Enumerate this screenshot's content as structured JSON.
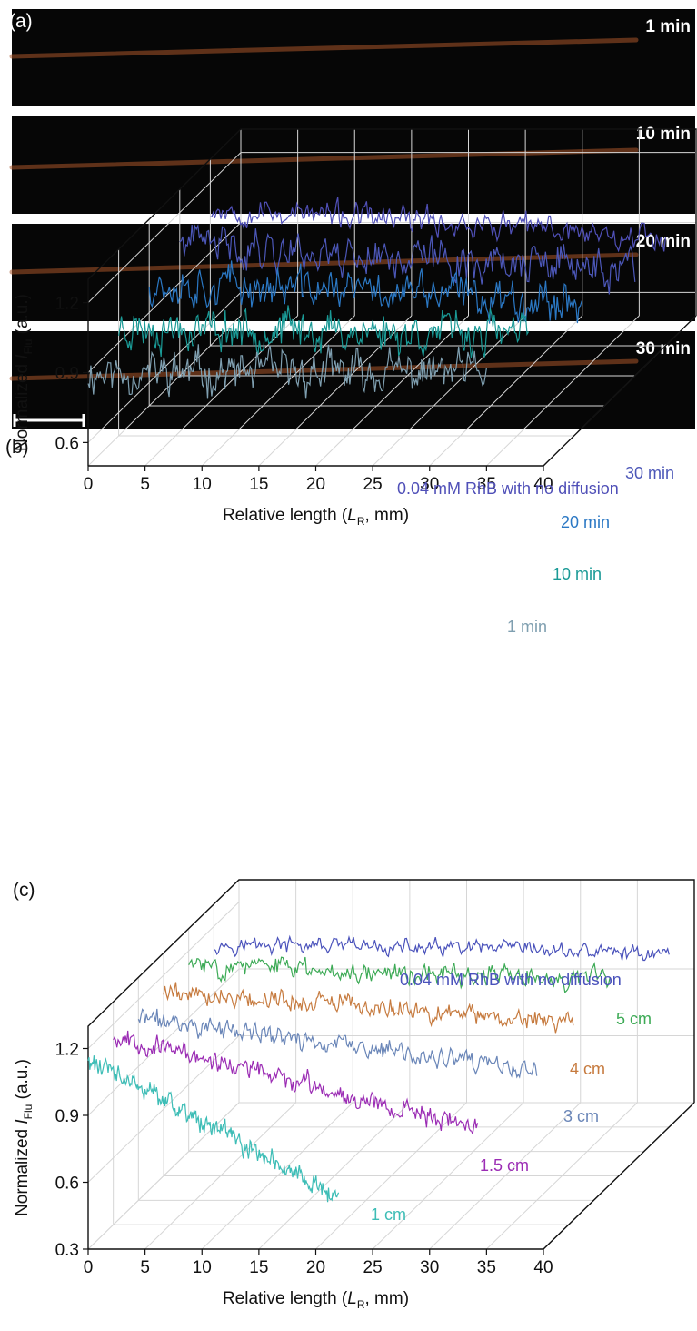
{
  "panels": {
    "a": {
      "label": "(a)",
      "strips": [
        {
          "time_label": "1 min"
        },
        {
          "time_label": "10 min"
        },
        {
          "time_label": "20 min"
        },
        {
          "time_label": "30 min"
        }
      ],
      "colors": {
        "background": "#060606",
        "streak": "#a8552a",
        "scale_bar": "#ffffff"
      }
    },
    "b": {
      "label": "(b)"
    },
    "c": {
      "label": "(c)"
    }
  },
  "chart_data": [
    {
      "type": "line",
      "panel": "b",
      "projection": "3d-waterfall",
      "xlabel": "Relative length (L_R, mm)",
      "xlabel_main": "Relative length (",
      "xlabel_var": "L",
      "xlabel_sub": "R",
      "xlabel_tail": ", mm)",
      "ylabel_main": "Normalized ",
      "ylabel_var": "I",
      "ylabel_sub": "Flu",
      "ylabel_tail": " (a.u.)",
      "xlim": [
        0,
        40
      ],
      "ylim": [
        0.5,
        1.3
      ],
      "x_ticks": [
        0,
        5,
        10,
        15,
        20,
        25,
        30,
        35,
        40
      ],
      "y_ticks": [
        0.6,
        0.9,
        1.2
      ],
      "y_tick_labels": [
        "0.6",
        "0.9",
        "1.2"
      ],
      "grid": true,
      "series": [
        {
          "name": "1 min",
          "color": "#7f9fb0",
          "x_end": 35,
          "mean": 0.9,
          "slope": 0.0,
          "noise": 0.085,
          "seed": 11
        },
        {
          "name": "10 min",
          "color": "#1a9a96",
          "x_end": 36,
          "mean": 0.97,
          "slope": -0.001,
          "noise": 0.085,
          "seed": 23
        },
        {
          "name": "20 min",
          "color": "#2b78c4",
          "x_end": 38,
          "mean": 1.03,
          "slope": -0.002,
          "noise": 0.085,
          "seed": 37
        },
        {
          "name": "30 min",
          "color": "#4c57b8",
          "x_end": 40,
          "mean": 1.07,
          "slope": -0.003,
          "noise": 0.085,
          "seed": 41
        },
        {
          "name": "0.04 mM RhB with no diffusion",
          "color": "#5050b8",
          "x_end": 40,
          "mean": 1.09,
          "slope": -0.003,
          "noise": 0.055,
          "seed": 53
        }
      ]
    },
    {
      "type": "line",
      "panel": "c",
      "projection": "3d-waterfall",
      "xlabel": "Relative length (L_R, mm)",
      "xlabel_main": "Relative length (",
      "xlabel_var": "L",
      "xlabel_sub": "R",
      "xlabel_tail": ", mm)",
      "ylabel_main": "Normalized ",
      "ylabel_var": "I",
      "ylabel_sub": "Flu",
      "ylabel_tail": " (a.u.)",
      "xlim": [
        0,
        40
      ],
      "ylim": [
        0.3,
        1.3
      ],
      "x_ticks": [
        0,
        5,
        10,
        15,
        20,
        25,
        30,
        35,
        40
      ],
      "y_ticks": [
        0.3,
        0.6,
        0.9,
        1.2
      ],
      "y_tick_labels": [
        "0.3",
        "0.6",
        "0.9",
        "1.2"
      ],
      "grid": true,
      "series": [
        {
          "name": "1 cm",
          "color": "#3dbdb6",
          "x_end": 22,
          "mean": 1.15,
          "slope": -0.028,
          "noise": 0.045,
          "seed": 61
        },
        {
          "name": "1.5 cm",
          "color": "#9b2cb4",
          "x_end": 32,
          "mean": 1.15,
          "slope": -0.013,
          "noise": 0.045,
          "seed": 67
        },
        {
          "name": "3 cm",
          "color": "#6a86b8",
          "x_end": 35,
          "mean": 1.12,
          "slope": -0.007,
          "noise": 0.045,
          "seed": 71
        },
        {
          "name": "4 cm",
          "color": "#c67a3e",
          "x_end": 36,
          "mean": 1.13,
          "slope": -0.004,
          "noise": 0.045,
          "seed": 79
        },
        {
          "name": "5 cm",
          "color": "#3caa55",
          "x_end": 37,
          "mean": 1.14,
          "slope": -0.002,
          "noise": 0.045,
          "seed": 83
        },
        {
          "name": "0.04 mM RhB with no diffusion",
          "color": "#4a52bb",
          "x_end": 40,
          "mean": 1.12,
          "slope": -0.001,
          "noise": 0.035,
          "seed": 97
        }
      ]
    }
  ]
}
